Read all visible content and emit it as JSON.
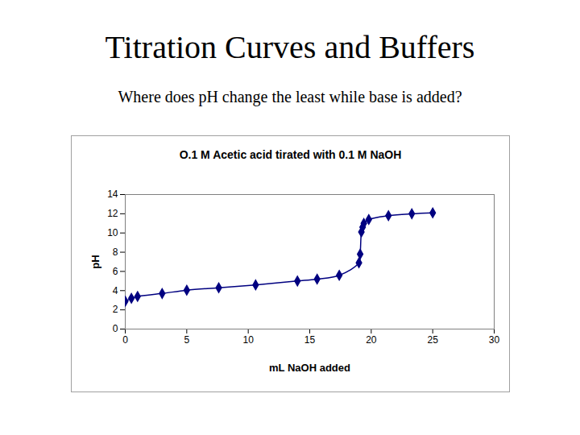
{
  "slide": {
    "title": "Titration Curves and Buffers",
    "subtitle": "Where does pH change the least while base is added?"
  },
  "chart_data": {
    "type": "line",
    "title": "O.1 M Acetic acid tirated with 0.1 M NaOH",
    "x_label": "mL NaOH added",
    "y_label": "pH",
    "x": [
      0,
      0.5,
      1,
      3,
      5,
      7.6,
      10.6,
      14,
      15.6,
      17.4,
      19,
      19.1,
      19.2,
      19.3,
      19.4,
      19.8,
      21.4,
      23.3,
      25
    ],
    "values": [
      2.9,
      3.2,
      3.4,
      3.7,
      4.05,
      4.3,
      4.6,
      5.0,
      5.2,
      5.6,
      6.9,
      7.8,
      10.1,
      10.6,
      11.0,
      11.4,
      11.8,
      12.0,
      12.1
    ],
    "color": "#000080",
    "marker": "diamond",
    "line_style": "smooth",
    "xlim": [
      0,
      30
    ],
    "xticks": [
      0,
      5,
      10,
      15,
      20,
      25,
      30
    ],
    "ylim": [
      0,
      14
    ],
    "yticks": [
      0,
      2,
      4,
      6,
      8,
      10,
      12,
      14
    ],
    "grid": false
  }
}
